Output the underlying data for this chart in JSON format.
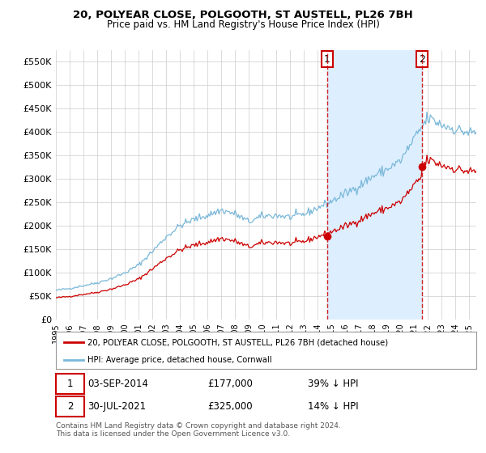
{
  "title": "20, POLYEAR CLOSE, POLGOOTH, ST AUSTELL, PL26 7BH",
  "subtitle": "Price paid vs. HM Land Registry's House Price Index (HPI)",
  "legend_line1": "20, POLYEAR CLOSE, POLGOOTH, ST AUSTELL, PL26 7BH (detached house)",
  "legend_line2": "HPI: Average price, detached house, Cornwall",
  "footnote": "Contains HM Land Registry data © Crown copyright and database right 2024.\nThis data is licensed under the Open Government Licence v3.0.",
  "hpi_color": "#7ab8d9",
  "price_color": "#cc0000",
  "vline_color": "#cc0000",
  "shade_color": "#ddeeff",
  "ylim": [
    0,
    575000
  ],
  "yticks": [
    0,
    50000,
    100000,
    150000,
    200000,
    250000,
    300000,
    350000,
    400000,
    450000,
    500000,
    550000
  ],
  "sale1_year_num": 2014.67,
  "sale1_price": 177000,
  "sale2_year_num": 2021.58,
  "sale2_price": 325000,
  "background_color": "#ffffff",
  "grid_color": "#cccccc",
  "ann1_date": "03-SEP-2014",
  "ann1_price": "£177,000",
  "ann1_pct": "39% ↓ HPI",
  "ann2_date": "30-JUL-2021",
  "ann2_price": "£325,000",
  "ann2_pct": "14% ↓ HPI"
}
